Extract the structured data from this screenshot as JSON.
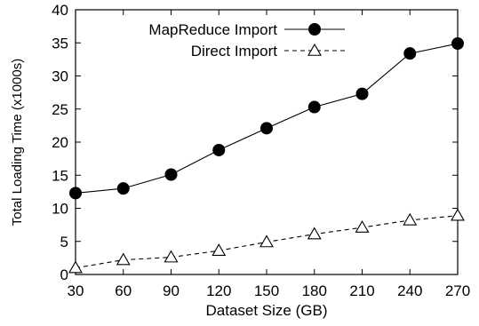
{
  "chart_data": {
    "type": "line",
    "title": "",
    "xlabel": "Dataset Size (GB)",
    "ylabel": "Total Loading Time (x1000s)",
    "x": [
      30,
      60,
      90,
      120,
      150,
      180,
      210,
      240,
      270
    ],
    "xlim": [
      30,
      270
    ],
    "ylim": [
      0,
      40
    ],
    "xticks": [
      "30",
      "60",
      "90",
      "120",
      "150",
      "180",
      "210",
      "240",
      "270"
    ],
    "yticks": [
      "0",
      "5",
      "10",
      "15",
      "20",
      "25",
      "30",
      "35",
      "40"
    ],
    "grid": false,
    "legend_position": "top-left",
    "series": [
      {
        "name": "MapReduce Import",
        "values": [
          12.3,
          13.0,
          15.1,
          18.8,
          22.1,
          25.3,
          27.3,
          33.4,
          34.9
        ],
        "marker": "filled-circle",
        "line_style": "solid",
        "color": "#000000"
      },
      {
        "name": "Direct Import",
        "values": [
          1.0,
          2.2,
          2.6,
          3.6,
          4.9,
          6.1,
          7.1,
          8.2,
          8.9
        ],
        "marker": "open-triangle",
        "line_style": "dashed",
        "color": "#000000"
      }
    ]
  }
}
